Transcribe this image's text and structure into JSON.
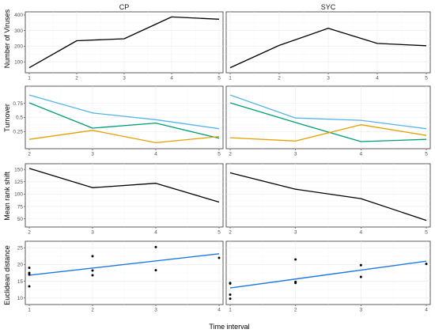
{
  "colors": {
    "black": "#000000",
    "skyblue": "#56B4E9",
    "green": "#009E73",
    "orange": "#E69F00",
    "blue": "#1F78E0"
  },
  "strips": [
    "CP",
    "SYC"
  ],
  "x_axis_label": "Time interval",
  "chart_data": [
    {
      "type": "line",
      "facet": "CP",
      "ylabel": "Number of Viruses",
      "x": [
        1,
        2,
        3,
        4,
        5
      ],
      "xlim": [
        1,
        5
      ],
      "ylim": [
        50,
        400
      ],
      "yticks": [
        100,
        200,
        300,
        400
      ],
      "series": [
        {
          "color": "#000000",
          "values": [
            62,
            235,
            248,
            388,
            373
          ]
        }
      ]
    },
    {
      "type": "line",
      "facet": "SYC",
      "ylabel": "Number of Viruses",
      "x": [
        1,
        2,
        3,
        4,
        5
      ],
      "xlim": [
        1,
        5
      ],
      "ylim": [
        50,
        400
      ],
      "yticks": [
        100,
        200,
        300,
        400
      ],
      "series": [
        {
          "color": "#000000",
          "values": [
            62,
            205,
            315,
            218,
            203
          ]
        }
      ]
    },
    {
      "type": "line",
      "facet": "CP",
      "ylabel": "Turnover",
      "x": [
        2,
        3,
        4,
        5
      ],
      "xlim": [
        2,
        5
      ],
      "ylim": [
        0,
        1
      ],
      "yticks": [
        0.25,
        0.5,
        0.75
      ],
      "series": [
        {
          "color": "#56B4E9",
          "values": [
            0.9,
            0.58,
            0.46,
            0.3
          ]
        },
        {
          "color": "#009E73",
          "values": [
            0.76,
            0.31,
            0.4,
            0.13
          ]
        },
        {
          "color": "#E69F00",
          "values": [
            0.11,
            0.27,
            0.05,
            0.16
          ]
        }
      ]
    },
    {
      "type": "line",
      "facet": "SYC",
      "ylabel": "Turnover",
      "x": [
        2,
        3,
        4,
        5
      ],
      "xlim": [
        2,
        5
      ],
      "ylim": [
        0,
        1
      ],
      "yticks": [
        0.25,
        0.5,
        0.75
      ],
      "series": [
        {
          "color": "#56B4E9",
          "values": [
            0.9,
            0.49,
            0.45,
            0.3
          ]
        },
        {
          "color": "#009E73",
          "values": [
            0.76,
            0.41,
            0.07,
            0.11
          ]
        },
        {
          "color": "#E69F00",
          "values": [
            0.14,
            0.08,
            0.37,
            0.18
          ]
        }
      ]
    },
    {
      "type": "line",
      "facet": "CP",
      "ylabel": "Mean rank shift",
      "x": [
        2,
        3,
        4,
        5
      ],
      "xlim": [
        2,
        5
      ],
      "ylim": [
        40,
        155
      ],
      "yticks": [
        50,
        75,
        100,
        125,
        150
      ],
      "series": [
        {
          "color": "#000000",
          "values": [
            152,
            113,
            122,
            84
          ]
        }
      ]
    },
    {
      "type": "line",
      "facet": "SYC",
      "ylabel": "Mean rank shift",
      "x": [
        2,
        3,
        4,
        5
      ],
      "xlim": [
        2,
        5
      ],
      "ylim": [
        40,
        155
      ],
      "yticks": [
        50,
        75,
        100,
        125,
        150
      ],
      "series": [
        {
          "color": "#000000",
          "values": [
            143,
            110,
            91,
            47
          ]
        }
      ]
    },
    {
      "type": "scatter",
      "facet": "CP",
      "ylabel": "Euclidean distance",
      "x": [
        1,
        2,
        3,
        4
      ],
      "xlim": [
        1,
        4
      ],
      "ylim": [
        9,
        26
      ],
      "yticks": [
        10,
        15,
        20,
        25
      ],
      "points": [
        [
          1,
          19
        ],
        [
          1,
          17.5
        ],
        [
          1,
          17
        ],
        [
          1,
          13.5
        ],
        [
          2,
          22.5
        ],
        [
          2,
          18.2
        ],
        [
          2,
          16.8
        ],
        [
          3,
          25.2
        ],
        [
          3,
          18.3
        ],
        [
          4,
          22
        ]
      ],
      "trend": {
        "color": "#1F78E0",
        "y_start": 16.8,
        "y_end": 23.2
      }
    },
    {
      "type": "scatter",
      "facet": "SYC",
      "ylabel": "Euclidean distance",
      "x": [
        1,
        2,
        3,
        4
      ],
      "xlim": [
        1,
        4
      ],
      "ylim": [
        9,
        26
      ],
      "yticks": [
        10,
        15,
        20,
        25
      ],
      "points": [
        [
          1,
          14.5
        ],
        [
          1,
          14.3
        ],
        [
          1,
          11
        ],
        [
          1,
          9.8
        ],
        [
          2,
          21.5
        ],
        [
          2,
          14.8
        ],
        [
          2,
          14.5
        ],
        [
          3,
          19.8
        ],
        [
          3,
          16.3
        ],
        [
          4,
          20.2
        ]
      ],
      "trend": {
        "color": "#1F78E0",
        "y_start": 13,
        "y_end": 21
      }
    }
  ]
}
